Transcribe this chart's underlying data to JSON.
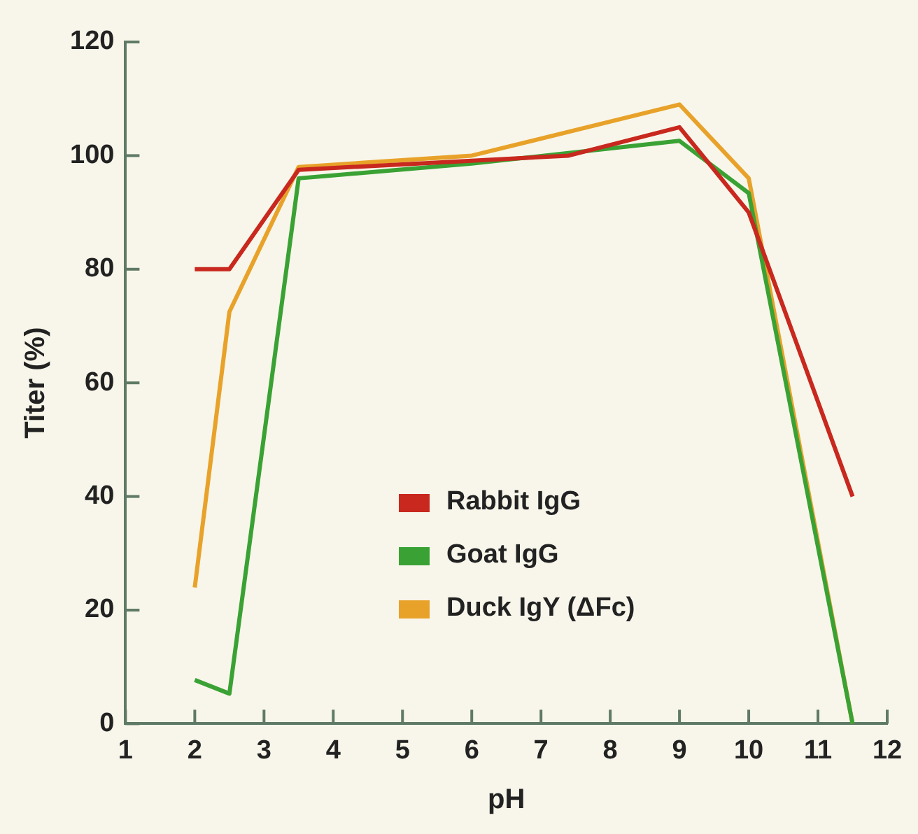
{
  "chart_data": {
    "type": "line",
    "xlabel": "pH",
    "ylabel": "Titer (%)",
    "xlim": [
      1,
      12
    ],
    "xticks": [
      1,
      2,
      3,
      4,
      5,
      6,
      7,
      8,
      9,
      10,
      11,
      12
    ],
    "ylim": [
      0,
      120
    ],
    "yticks": [
      0,
      20,
      40,
      60,
      80,
      100,
      120
    ],
    "grid": false,
    "legend": "right",
    "marker": "none",
    "line_style": "solid",
    "series": [
      {
        "name": "Rabbit IgG",
        "color": "#c8281e",
        "x": [
          2,
          2.5,
          3.5,
          7.4,
          9,
          10,
          11.5
        ],
        "values": [
          80,
          80,
          97.5,
          100,
          105,
          90,
          40
        ]
      },
      {
        "name": "Goat IgG",
        "color": "#3aa234",
        "x": [
          2,
          2.5,
          3.5,
          6,
          9,
          10,
          11.5
        ],
        "values": [
          7.7,
          5.3,
          96,
          98.6,
          102.6,
          93.4,
          0
        ]
      },
      {
        "name": "Duck IgY (ΔFc)",
        "color": "#e8a22a",
        "x": [
          2,
          2.5,
          3.5,
          6,
          9,
          10,
          11.5
        ],
        "values": [
          24,
          72.5,
          98,
          100,
          109,
          96,
          0
        ]
      }
    ]
  }
}
